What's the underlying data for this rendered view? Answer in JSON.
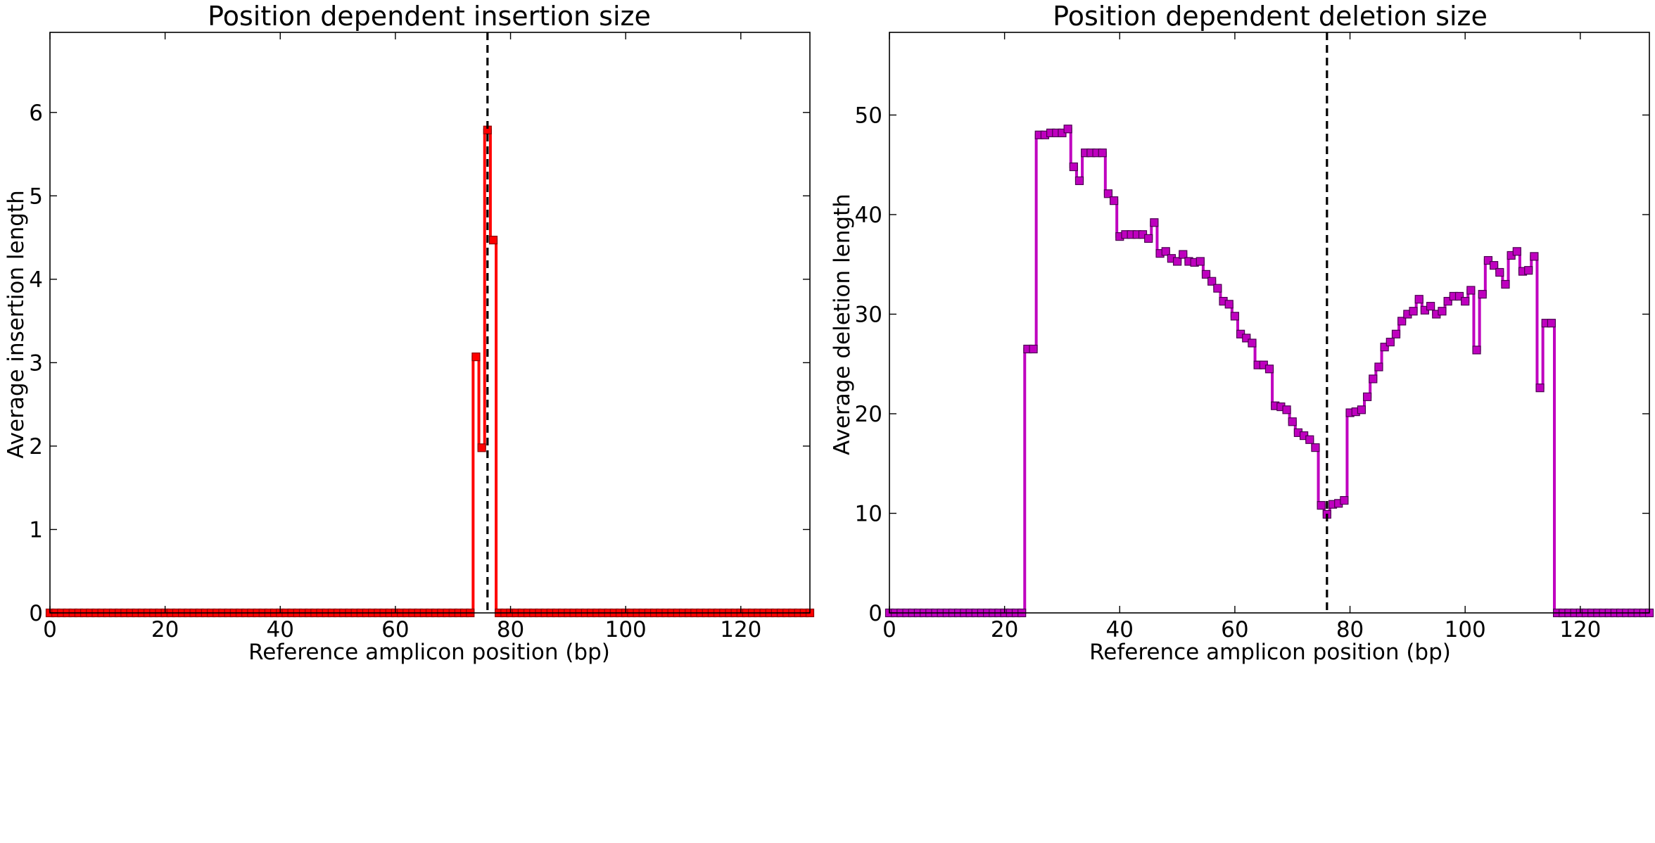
{
  "chart_data": [
    {
      "type": "line",
      "title": "Position dependent insertion size",
      "xlabel": "Reference amplicon position (bp)",
      "ylabel": "Average insertion length",
      "xlim": [
        0,
        132
      ],
      "ylim": [
        0,
        6.96
      ],
      "xticks": [
        0,
        20,
        40,
        60,
        80,
        100,
        120
      ],
      "yticks": [
        0,
        1,
        2,
        3,
        4,
        5,
        6
      ],
      "grid": false,
      "step": true,
      "marker": "square",
      "color": "#ff0000",
      "marker_edge_color": "#8b0000",
      "cut_site": 76,
      "x": [
        0,
        1,
        2,
        3,
        4,
        5,
        6,
        7,
        8,
        9,
        10,
        11,
        12,
        13,
        14,
        15,
        16,
        17,
        18,
        19,
        20,
        21,
        22,
        23,
        24,
        25,
        26,
        27,
        28,
        29,
        30,
        31,
        32,
        33,
        34,
        35,
        36,
        37,
        38,
        39,
        40,
        41,
        42,
        43,
        44,
        45,
        46,
        47,
        48,
        49,
        50,
        51,
        52,
        53,
        54,
        55,
        56,
        57,
        58,
        59,
        60,
        61,
        62,
        63,
        64,
        65,
        66,
        67,
        68,
        69,
        70,
        71,
        72,
        73,
        74,
        75,
        76,
        77,
        78,
        79,
        80,
        81,
        82,
        83,
        84,
        85,
        86,
        87,
        88,
        89,
        90,
        91,
        92,
        93,
        94,
        95,
        96,
        97,
        98,
        99,
        100,
        101,
        102,
        103,
        104,
        105,
        106,
        107,
        108,
        109,
        110,
        111,
        112,
        113,
        114,
        115,
        116,
        117,
        118,
        119,
        120,
        121,
        122,
        123,
        124,
        125,
        126,
        127,
        128,
        129,
        130,
        131,
        132
      ],
      "y": [
        0,
        0,
        0,
        0,
        0,
        0,
        0,
        0,
        0,
        0,
        0,
        0,
        0,
        0,
        0,
        0,
        0,
        0,
        0,
        0,
        0,
        0,
        0,
        0,
        0,
        0,
        0,
        0,
        0,
        0,
        0,
        0,
        0,
        0,
        0,
        0,
        0,
        0,
        0,
        0,
        0,
        0,
        0,
        0,
        0,
        0,
        0,
        0,
        0,
        0,
        0,
        0,
        0,
        0,
        0,
        0,
        0,
        0,
        0,
        0,
        0,
        0,
        0,
        0,
        0,
        0,
        0,
        0,
        0,
        0,
        0,
        0,
        0,
        0,
        3.07,
        1.98,
        5.79,
        4.47,
        0,
        0,
        0,
        0,
        0,
        0,
        0,
        0,
        0,
        0,
        0,
        0,
        0,
        0,
        0,
        0,
        0,
        0,
        0,
        0,
        0,
        0,
        0,
        0,
        0,
        0,
        0,
        0,
        0,
        0,
        0,
        0,
        0,
        0,
        0,
        0,
        0,
        0,
        0,
        0,
        0,
        0,
        0,
        0,
        0,
        0,
        0,
        0,
        0,
        0,
        0,
        0,
        0,
        0,
        0
      ]
    },
    {
      "type": "line",
      "title": "Position dependent deletion size",
      "xlabel": "Reference amplicon position (bp)",
      "ylabel": "Average deletion length",
      "xlim": [
        0,
        132
      ],
      "ylim": [
        0,
        58.3
      ],
      "xticks": [
        0,
        20,
        40,
        60,
        80,
        100,
        120
      ],
      "yticks": [
        0,
        10,
        20,
        30,
        40,
        50
      ],
      "grid": false,
      "step": true,
      "marker": "square",
      "color": "#bf00bf",
      "marker_edge_color": "#4b0050",
      "cut_site": 76,
      "x": [
        0,
        1,
        2,
        3,
        4,
        5,
        6,
        7,
        8,
        9,
        10,
        11,
        12,
        13,
        14,
        15,
        16,
        17,
        18,
        19,
        20,
        21,
        22,
        23,
        24,
        25,
        26,
        27,
        28,
        29,
        30,
        31,
        32,
        33,
        34,
        35,
        36,
        37,
        38,
        39,
        40,
        41,
        42,
        43,
        44,
        45,
        46,
        47,
        48,
        49,
        50,
        51,
        52,
        53,
        54,
        55,
        56,
        57,
        58,
        59,
        60,
        61,
        62,
        63,
        64,
        65,
        66,
        67,
        68,
        69,
        70,
        71,
        72,
        73,
        74,
        75,
        76,
        77,
        78,
        79,
        80,
        81,
        82,
        83,
        84,
        85,
        86,
        87,
        88,
        89,
        90,
        91,
        92,
        93,
        94,
        95,
        96,
        97,
        98,
        99,
        100,
        101,
        102,
        103,
        104,
        105,
        106,
        107,
        108,
        109,
        110,
        111,
        112,
        113,
        114,
        115,
        116,
        117,
        118,
        119,
        120,
        121,
        122,
        123,
        124,
        125,
        126,
        127,
        128,
        129,
        130,
        131,
        132
      ],
      "y": [
        0,
        0,
        0,
        0,
        0,
        0,
        0,
        0,
        0,
        0,
        0,
        0,
        0,
        0,
        0,
        0,
        0,
        0,
        0,
        0,
        0,
        0,
        0,
        0,
        26.5,
        26.5,
        48.0,
        48.0,
        48.2,
        48.2,
        48.2,
        48.6,
        44.8,
        43.4,
        46.2,
        46.2,
        46.2,
        46.2,
        42.1,
        41.4,
        37.8,
        38.0,
        38.0,
        38.0,
        38.0,
        37.6,
        39.2,
        36.1,
        36.3,
        35.6,
        35.3,
        36.0,
        35.3,
        35.2,
        35.3,
        34.0,
        33.3,
        32.6,
        31.3,
        31.0,
        29.8,
        28.0,
        27.6,
        27.1,
        24.9,
        24.9,
        24.5,
        20.8,
        20.7,
        20.4,
        19.2,
        18.1,
        17.8,
        17.4,
        16.6,
        10.8,
        9.9,
        10.9,
        11.0,
        11.3,
        20.1,
        20.2,
        20.4,
        21.7,
        23.5,
        24.7,
        26.7,
        27.2,
        28.0,
        29.3,
        30.0,
        30.3,
        31.5,
        30.4,
        30.8,
        30.0,
        30.3,
        31.3,
        31.8,
        31.8,
        31.3,
        32.4,
        26.4,
        32.0,
        35.4,
        34.9,
        34.2,
        33.0,
        35.9,
        36.3,
        34.3,
        34.4,
        35.8,
        22.6,
        29.1,
        29.1,
        0,
        0,
        0,
        0,
        0,
        0,
        0,
        0,
        0,
        0,
        0,
        0,
        0,
        0,
        0,
        0,
        0
      ]
    }
  ]
}
